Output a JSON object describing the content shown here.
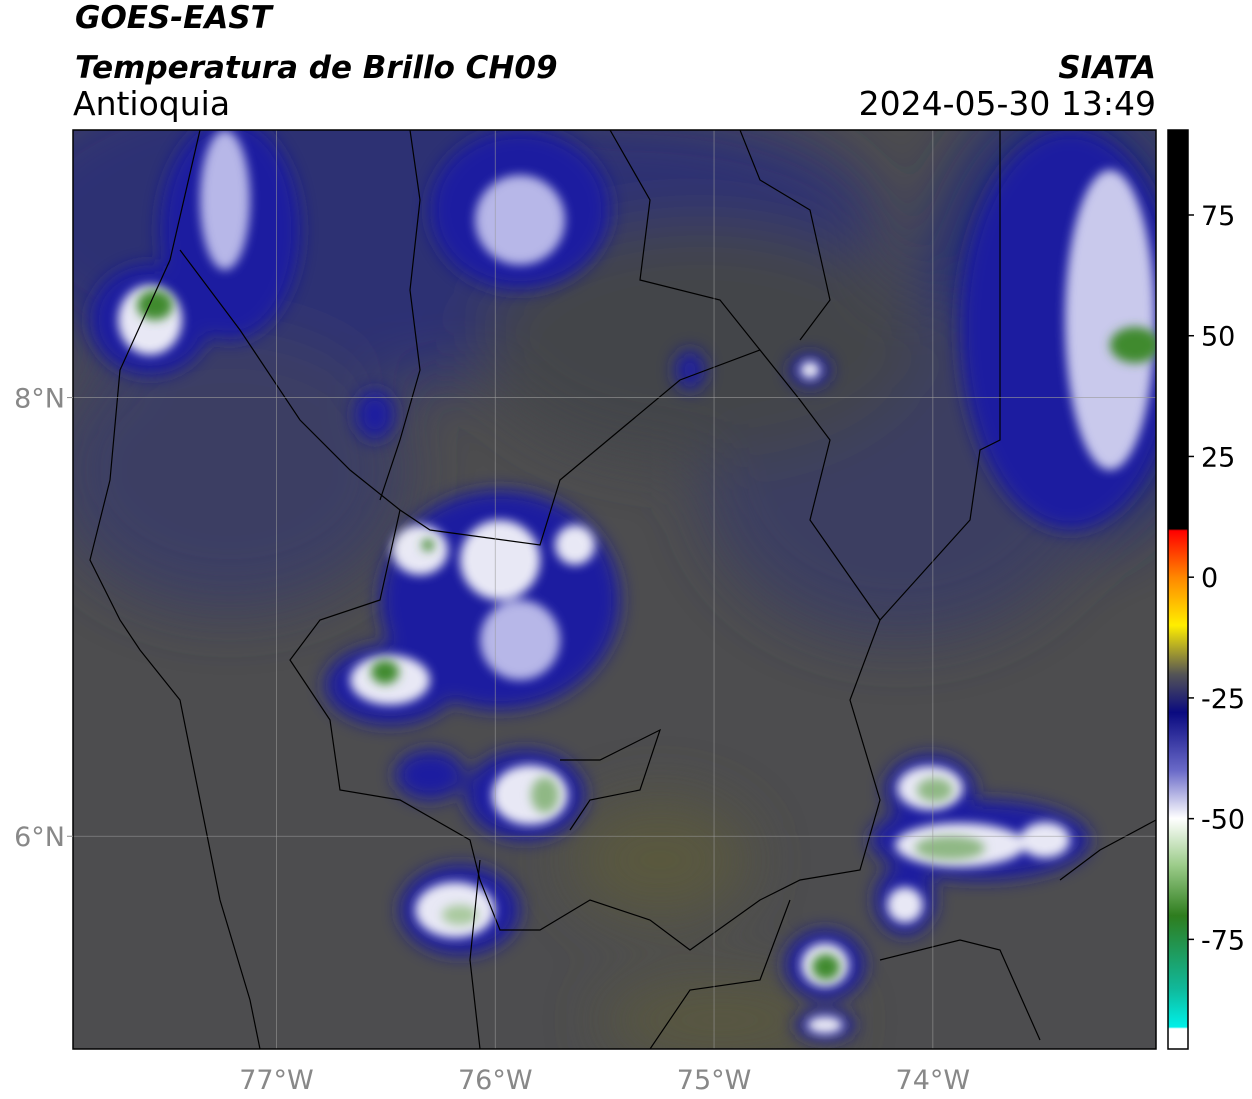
{
  "header": {
    "title": "GOES-EAST",
    "subtitle": "Temperatura de Brillo CH09",
    "region": "Antioquia",
    "source": "SIATA",
    "datetime": "2024-05-30 13:49"
  },
  "map": {
    "xlim": [
      -77.93,
      -72.98
    ],
    "ylim": [
      5.03,
      9.22
    ],
    "xticks": [
      {
        "value": -77,
        "label": "77°W"
      },
      {
        "value": -76,
        "label": "76°W"
      },
      {
        "value": -75,
        "label": "75°W"
      },
      {
        "value": -74,
        "label": "74°W"
      }
    ],
    "yticks": [
      {
        "value": 6,
        "label": "6°N"
      },
      {
        "value": 8,
        "label": "8°N"
      }
    ],
    "grid": true
  },
  "colorbar": {
    "clim": [
      -97.7,
      92.6
    ],
    "ticks": [
      75,
      50,
      25,
      0,
      -25,
      -50,
      -75
    ]
  }
}
